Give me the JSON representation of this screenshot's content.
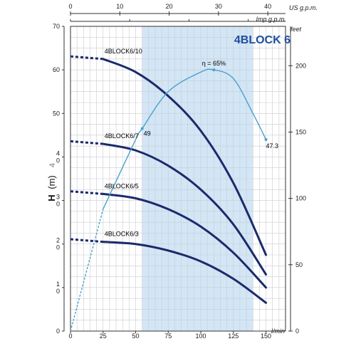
{
  "chart_data": {
    "type": "line",
    "title": "4BLOCK 6",
    "ylabel": "H",
    "ylabel_unit": "(m)",
    "ylabel_extra": "4",
    "xlabel": "l/min",
    "x_top_label": "US g.p.m.",
    "x_top2_label": "Imp g.p.m.",
    "y_right_label": "feet",
    "xlim": [
      0,
      165
    ],
    "ylim": [
      0,
      70
    ],
    "x_ticks": [
      "0",
      "25",
      "50",
      "75",
      "100",
      "125",
      "150"
    ],
    "y_ticks": [
      {
        "v": 0,
        "t": "0"
      },
      {
        "v": 10,
        "t": "1\n0"
      },
      {
        "v": 20,
        "t": "2\n0"
      },
      {
        "v": 30,
        "t": "3\n0"
      },
      {
        "v": 40,
        "t": "4\n0"
      },
      {
        "v": 50,
        "t": "50"
      },
      {
        "v": 60,
        "t": "60"
      },
      {
        "v": 70,
        "t": "70"
      }
    ],
    "top_ticks": [
      "0",
      "10",
      "20",
      "30",
      "40"
    ],
    "top2_ticks": [
      "0",
      "10",
      "20",
      "30"
    ],
    "right_ticks": [
      "0",
      "50",
      "100",
      "150",
      "200"
    ],
    "shaded_range": [
      55,
      140
    ],
    "series": [
      {
        "name": "4BLOCK6/10",
        "dashed_x": [
          0,
          25
        ],
        "x": [
          25,
          50,
          75,
          100,
          125,
          150
        ],
        "values": [
          62.5,
          59.5,
          54,
          46,
          34,
          17.5
        ]
      },
      {
        "name": "4BLOCK6/7",
        "dashed_x": [
          0,
          25
        ],
        "x": [
          25,
          50,
          75,
          100,
          125,
          150
        ],
        "values": [
          43,
          41.5,
          38,
          32.5,
          24.5,
          13
        ]
      },
      {
        "name": "4BLOCK6/5",
        "dashed_x": [
          0,
          25
        ],
        "x": [
          25,
          50,
          75,
          100,
          125,
          150
        ],
        "values": [
          31.5,
          30.5,
          28,
          24,
          18,
          10
        ]
      },
      {
        "name": "4BLOCK6/3",
        "dashed_x": [
          0,
          25
        ],
        "x": [
          25,
          50,
          75,
          100,
          125,
          150
        ],
        "values": [
          20.5,
          20,
          18.5,
          16,
          12,
          6.5
        ]
      }
    ],
    "efficiency": {
      "x": [
        0,
        25,
        50,
        55,
        75,
        100,
        110,
        125,
        140,
        150
      ],
      "values": [
        0,
        28,
        44,
        46.5,
        55,
        59.5,
        60,
        58,
        50,
        44
      ],
      "dashed_to_x": 25
    },
    "annotations": [
      {
        "text": "η = 65%",
        "x": 110,
        "y": 60
      },
      {
        "text": "49",
        "x": 55,
        "y": 46.5
      },
      {
        "text": "47.3",
        "x": 150,
        "y": 44
      }
    ],
    "grid": true
  }
}
